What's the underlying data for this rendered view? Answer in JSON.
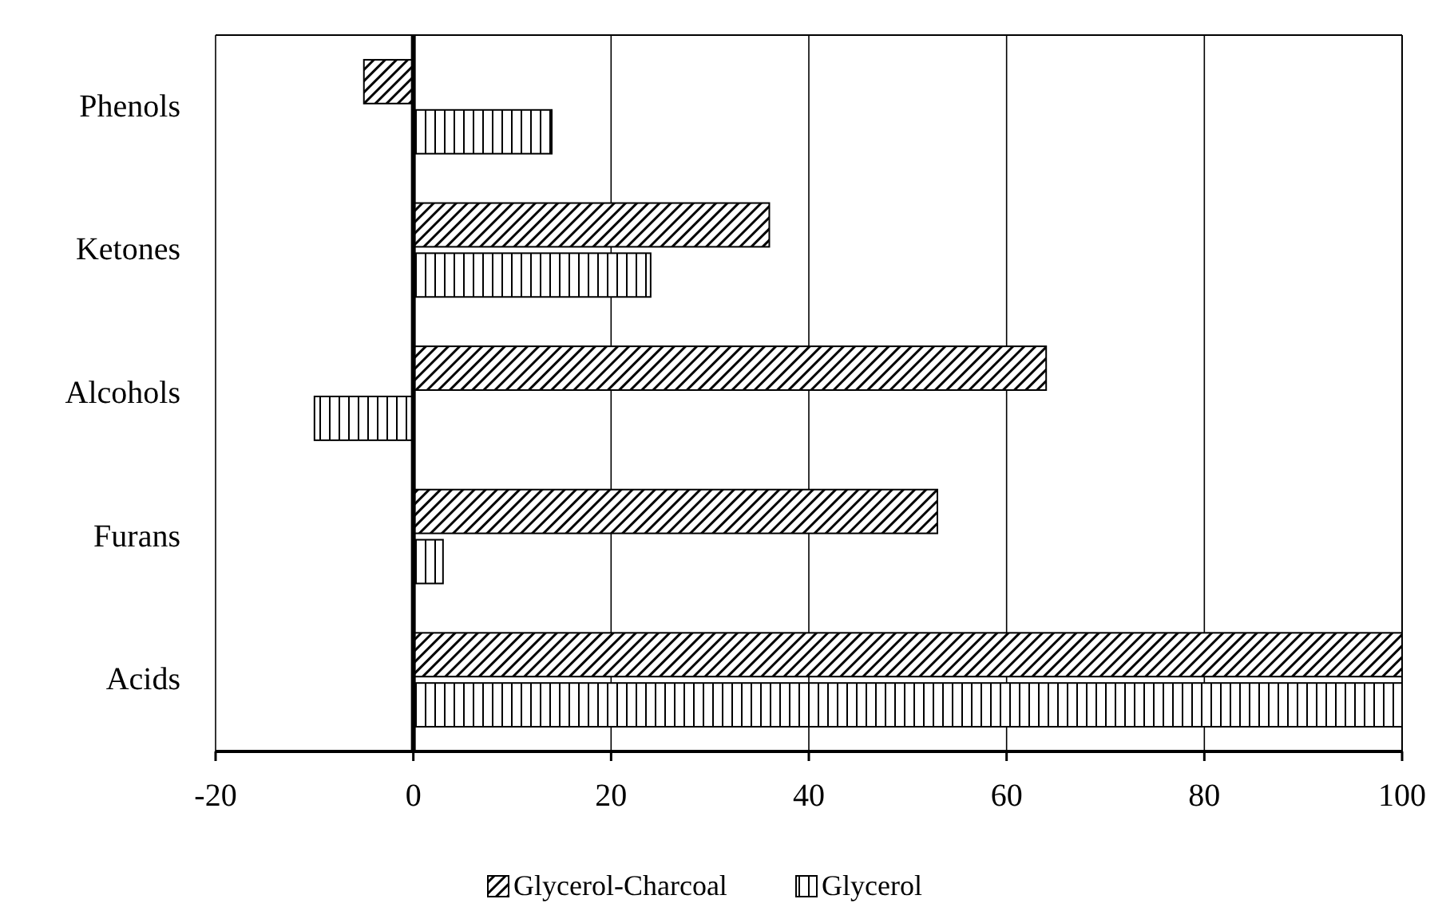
{
  "chart_data": {
    "type": "bar",
    "orientation": "horizontal",
    "categories": [
      "Phenols",
      "Ketones",
      "Alcohols",
      "Furans",
      "Acids"
    ],
    "series": [
      {
        "name": "Glycerol-Charcoal",
        "color": "#000000",
        "values": [
          -5,
          36,
          64,
          53,
          100
        ]
      },
      {
        "name": "Glycerol",
        "color": "#000000",
        "values": [
          14,
          24,
          -10,
          3,
          100
        ]
      }
    ],
    "xlim": [
      -20,
      100
    ],
    "xticks": [
      -20,
      0,
      20,
      40,
      60,
      80,
      100
    ],
    "grid": "x",
    "legend": "bottom"
  }
}
